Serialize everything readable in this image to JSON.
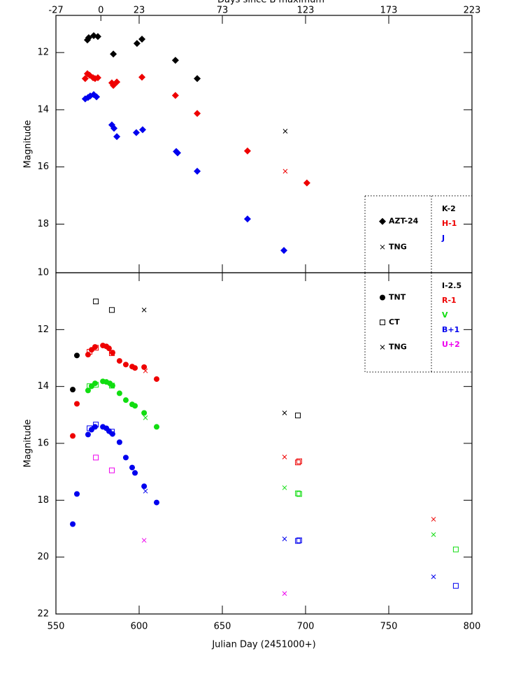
{
  "chart_data": [
    {
      "type": "scatter",
      "xlabel": "Julian Day (2451000+)",
      "ylabel": "Magnitude",
      "x2label": "Days since B maximum",
      "xlim": [
        550,
        800
      ],
      "xticks": [
        550,
        600,
        650,
        700,
        750,
        800
      ],
      "show_xticklabels": false,
      "x2lim": [
        -27,
        223
      ],
      "x2ticks": [
        -27,
        0,
        23,
        73,
        123,
        173,
        223
      ],
      "ylim": [
        10.7,
        19.7
      ],
      "yticks": [
        12,
        14,
        16,
        18
      ],
      "inverted_y": true,
      "legend": "lower right",
      "instruments": [
        {
          "name": "AZT-24",
          "marker": "diamond"
        },
        {
          "name": "TNG",
          "marker": "cross"
        }
      ],
      "bands": [
        {
          "name": "K-2",
          "color": "#000000"
        },
        {
          "name": "H-1",
          "color": "#ee0000"
        },
        {
          "name": "J",
          "color": "#0000ee"
        }
      ],
      "series": [
        {
          "band": "K-2",
          "instrument": "AZT-24",
          "x": [
            568.9,
            569.7,
            572.7,
            575.2,
            584.5,
            598.7,
            601.7,
            621.8,
            634.9
          ],
          "values": [
            11.56,
            11.48,
            11.41,
            11.44,
            12.05,
            11.68,
            11.53,
            12.27,
            12.91
          ]
        },
        {
          "band": "K-2",
          "instrument": "TNG",
          "x": [
            687.8
          ],
          "values": [
            14.75
          ]
        },
        {
          "band": "H-1",
          "instrument": "AZT-24",
          "x": [
            567.6,
            568.9,
            570.2,
            572.3,
            573.5,
            575.2,
            583.6,
            584.5,
            586.6,
            601.7,
            621.8,
            634.9,
            665.1,
            700.8
          ],
          "values": [
            12.91,
            12.74,
            12.79,
            12.88,
            12.91,
            12.88,
            13.06,
            13.15,
            13.03,
            12.86,
            13.5,
            14.13,
            15.44,
            16.56
          ]
        },
        {
          "band": "H-1",
          "instrument": "TNG",
          "x": [
            687.8
          ],
          "values": [
            16.15
          ]
        },
        {
          "band": "J",
          "instrument": "AZT-24",
          "x": [
            567.6,
            569.3,
            570.6,
            572.7,
            574.4,
            583.6,
            584.9,
            586.6,
            598.3,
            602.1,
            622.3,
            623.1,
            634.9,
            665.1,
            687.0
          ],
          "values": [
            13.62,
            13.57,
            13.52,
            13.47,
            13.55,
            14.53,
            14.65,
            14.94,
            14.8,
            14.7,
            15.46,
            15.51,
            16.15,
            17.82,
            18.92
          ]
        }
      ]
    },
    {
      "type": "scatter",
      "xlabel": "Julian Day (2451000+)",
      "ylabel": "Magnitude",
      "xlim": [
        550,
        800
      ],
      "xticks": [
        550,
        600,
        650,
        700,
        750,
        800
      ],
      "show_xticklabels": true,
      "ylim": [
        10,
        22
      ],
      "yticks": [
        10,
        12,
        14,
        16,
        18,
        20,
        22
      ],
      "inverted_y": true,
      "legend": "upper right",
      "instruments": [
        {
          "name": "TNT",
          "marker": "circle"
        },
        {
          "name": "CT",
          "marker": "square"
        },
        {
          "name": "TNG",
          "marker": "cross"
        }
      ],
      "bands": [
        {
          "name": "I-2.5",
          "color": "#000000"
        },
        {
          "name": "R-1",
          "color": "#ee0000"
        },
        {
          "name": "V",
          "color": "#11dd11"
        },
        {
          "name": "B+1",
          "color": "#0000ee"
        },
        {
          "name": "U+2",
          "color": "#ee00ee"
        }
      ],
      "series": [
        {
          "band": "I-2.5",
          "instrument": "TNT",
          "x": [
            560.1,
            562.6
          ],
          "values": [
            14.11,
            12.91
          ]
        },
        {
          "band": "I-2.5",
          "instrument": "CT",
          "x": [
            574.0,
            583.6,
            695.4
          ],
          "values": [
            11.01,
            11.31,
            15.02
          ]
        },
        {
          "band": "I-2.5",
          "instrument": "TNG",
          "x": [
            603.0,
            687.4
          ],
          "values": [
            11.31,
            14.93
          ]
        },
        {
          "band": "R-1",
          "instrument": "TNT",
          "x": [
            560.1,
            562.6,
            569.3,
            571.4,
            573.5,
            578.2,
            580.3,
            581.9,
            584.0,
            588.2,
            592.0,
            595.8,
            597.5,
            603.0,
            610.5
          ],
          "values": [
            15.74,
            14.61,
            12.88,
            12.71,
            12.61,
            12.56,
            12.59,
            12.66,
            12.81,
            13.1,
            13.23,
            13.3,
            13.35,
            13.32,
            13.74
          ]
        },
        {
          "band": "R-1",
          "instrument": "CT",
          "x": [
            570.2,
            574.0,
            583.6,
            695.4,
            696.2
          ],
          "values": [
            12.78,
            12.64,
            12.83,
            16.67,
            16.63
          ]
        },
        {
          "band": "R-1",
          "instrument": "TNG",
          "x": [
            603.8,
            687.4,
            776.9
          ],
          "values": [
            13.45,
            16.48,
            18.67
          ]
        },
        {
          "band": "V",
          "instrument": "TNT",
          "x": [
            569.3,
            571.4,
            573.5,
            578.2,
            580.3,
            582.4,
            584.0,
            588.2,
            592.0,
            595.8,
            597.5,
            603.0,
            610.5
          ],
          "values": [
            14.14,
            13.99,
            13.89,
            13.82,
            13.84,
            13.89,
            13.97,
            14.24,
            14.48,
            14.63,
            14.68,
            14.93,
            15.42
          ]
        },
        {
          "band": "V",
          "instrument": "CT",
          "x": [
            570.2,
            574.0,
            583.6,
            695.4,
            696.2,
            790.3
          ],
          "values": [
            13.99,
            13.94,
            13.97,
            17.76,
            17.78,
            19.73
          ]
        },
        {
          "band": "V",
          "instrument": "TNG",
          "x": [
            603.8,
            687.4,
            776.9
          ],
          "values": [
            15.1,
            17.56,
            19.21
          ]
        },
        {
          "band": "B+1",
          "instrument": "TNT",
          "x": [
            560.1,
            562.6,
            569.3,
            571.4,
            573.5,
            578.2,
            580.3,
            581.9,
            584.0,
            588.2,
            592.0,
            595.8,
            597.5,
            603.0,
            610.5
          ],
          "values": [
            18.84,
            17.78,
            15.69,
            15.52,
            15.42,
            15.42,
            15.47,
            15.57,
            15.67,
            15.96,
            16.5,
            16.85,
            17.04,
            17.51,
            18.08
          ]
        },
        {
          "band": "B+1",
          "instrument": "CT",
          "x": [
            570.2,
            574.0,
            583.6,
            695.4,
            696.2,
            790.3
          ],
          "values": [
            15.47,
            15.34,
            15.59,
            19.43,
            19.41,
            21.01
          ]
        },
        {
          "band": "B+1",
          "instrument": "TNG",
          "x": [
            603.8,
            687.4,
            776.9
          ],
          "values": [
            17.68,
            19.36,
            20.69
          ]
        },
        {
          "band": "U+2",
          "instrument": "CT",
          "x": [
            574.0,
            583.6
          ],
          "values": [
            16.5,
            16.95
          ]
        },
        {
          "band": "U+2",
          "instrument": "TNG",
          "x": [
            603.0,
            687.4
          ],
          "values": [
            19.41,
            21.28
          ]
        }
      ]
    }
  ]
}
